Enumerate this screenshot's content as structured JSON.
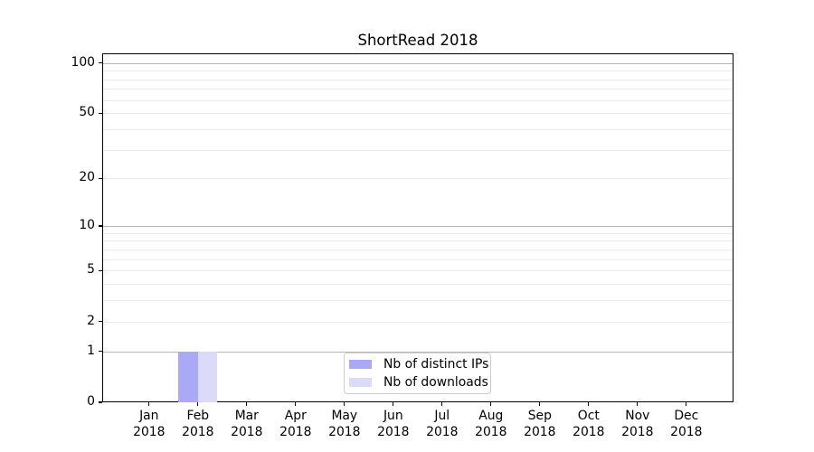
{
  "chart_data": {
    "type": "bar",
    "title": "ShortRead 2018",
    "xlabel": "",
    "ylabel": "",
    "categories": [
      "Jan 2018",
      "Feb 2018",
      "Mar 2018",
      "Apr 2018",
      "May 2018",
      "Jun 2018",
      "Jul 2018",
      "Aug 2018",
      "Sep 2018",
      "Oct 2018",
      "Nov 2018",
      "Dec 2018"
    ],
    "series": [
      {
        "name": "Nb of distinct IPs",
        "color": "#a9a9f5",
        "values": [
          0,
          1,
          0,
          0,
          0,
          0,
          0,
          0,
          0,
          0,
          0,
          0
        ]
      },
      {
        "name": "Nb of downloads",
        "color": "#dbdbf9",
        "values": [
          0,
          1,
          0,
          0,
          0,
          0,
          0,
          0,
          0,
          0,
          0,
          0
        ]
      }
    ],
    "yscale": "log1p",
    "ylim": [
      0,
      114
    ],
    "y_ticks": [
      0,
      1,
      2,
      5,
      10,
      20,
      50,
      100
    ],
    "major_gridlines": [
      1,
      10,
      100
    ],
    "minor_gridlines": [
      2,
      3,
      4,
      5,
      6,
      7,
      8,
      9,
      20,
      30,
      40,
      50,
      60,
      70,
      80,
      90
    ],
    "grid": true,
    "legend_position": "lower center",
    "colors": {
      "major_grid": "#b8b8b8",
      "minor_grid": "#e9e9e9",
      "spine": "#000000",
      "legend_border": "#cccccc"
    }
  }
}
